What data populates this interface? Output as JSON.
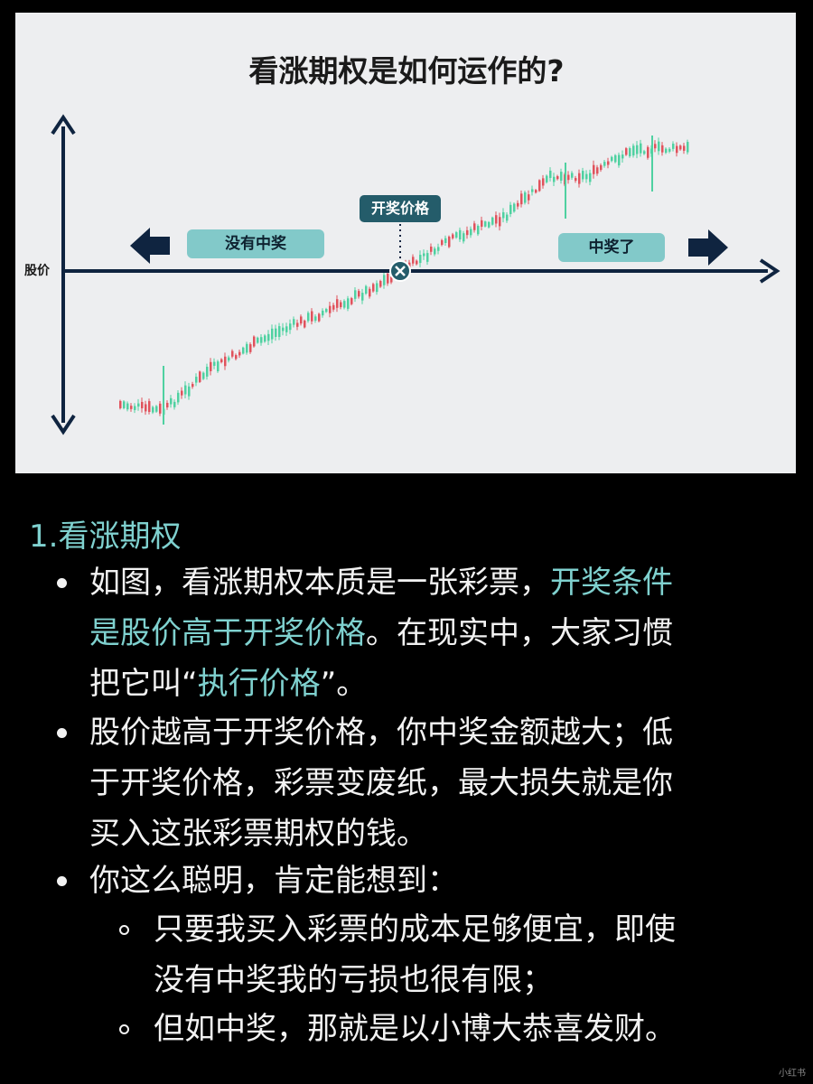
{
  "figure": {
    "title": "看涨期权是如何运作的?",
    "y_axis_label": "股价",
    "strike_label": "开奖价格",
    "left_label": "没有中奖",
    "right_label": "中奖了",
    "colors": {
      "up": "#4fd1a1",
      "down": "#e0525c",
      "axis": "#0f2440",
      "accent": "#245c6a",
      "label_bg": "#82c9c9"
    }
  },
  "section": {
    "heading": "1.看涨期权"
  },
  "bullets": [
    {
      "lines": [
        {
          "a": "如图，看涨期权本质是一张彩票，",
          "hl": "开奖条件"
        },
        {
          "hl": "是股价高于开奖价格",
          "b": "。在现实中，大家习惯"
        },
        {
          "a": "把它叫“",
          "hl": "执行价格",
          "b": "”。"
        }
      ]
    },
    {
      "lines": [
        {
          "a": "股价越高于开奖价格，你中奖金额越大；低"
        },
        {
          "a": "于开奖价格，彩票变废纸，最大损失就是你"
        },
        {
          "a": "买入这张彩票期权的钱。"
        }
      ]
    },
    {
      "lines": [
        {
          "a": "你这么聪明，肯定能想到："
        }
      ],
      "sub": [
        {
          "lines": [
            "只要我买入彩票的成本足够便宜，即使",
            "没有中奖我的亏损也很有限；"
          ]
        },
        {
          "lines": [
            "但如中奖，那就是以小博大恭喜发财。"
          ]
        }
      ]
    }
  ],
  "watermark": "小红书"
}
